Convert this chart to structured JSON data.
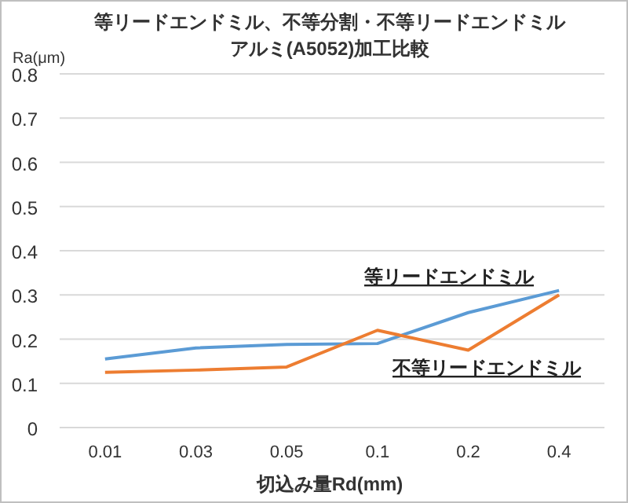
{
  "chart_data": {
    "type": "line",
    "title": "等リードエンドミル、不等分割・不等リードエンドミル",
    "subtitle": "アルミ(A5052)加工比較",
    "xlabel": "切込み量Rd(mm)",
    "ylabel": "Ra(μm)",
    "categories": [
      "0.01",
      "0.03",
      "0.05",
      "0.1",
      "0.2",
      "0.4"
    ],
    "series": [
      {
        "name": "等リードエンドミル",
        "color": "#5b9bd5",
        "values": [
          0.155,
          0.18,
          0.188,
          0.19,
          0.26,
          0.31
        ]
      },
      {
        "name": "不等リードエンドミル",
        "color": "#ed7d31",
        "values": [
          0.125,
          0.13,
          0.137,
          0.22,
          0.175,
          0.3
        ]
      }
    ],
    "ylim": [
      0,
      0.8
    ],
    "yticks": [
      0,
      0.1,
      0.2,
      0.3,
      0.4,
      0.5,
      0.6,
      0.7,
      0.8
    ],
    "grid": "y",
    "marker": "none",
    "line_style": "solid"
  }
}
